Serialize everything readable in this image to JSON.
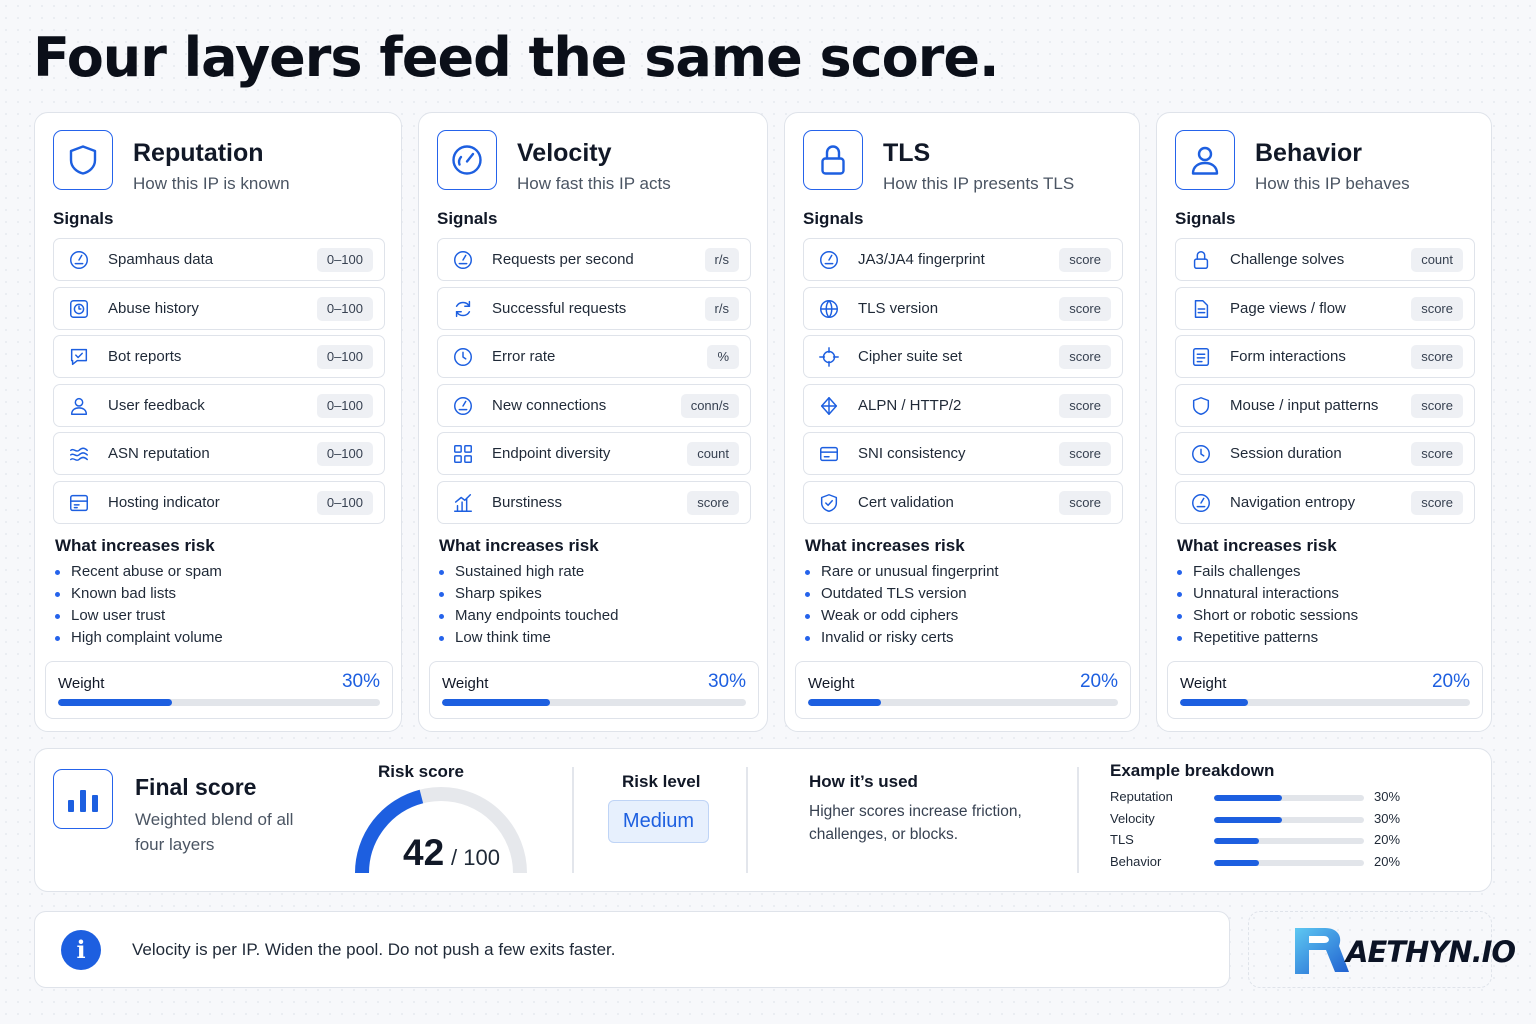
{
  "page_title": "Four layers feed the same score.",
  "signals_heading": "Signals",
  "risk_heading": "What increases risk",
  "weight_label": "Weight",
  "accent_color": "#1d5fe0",
  "cards": [
    {
      "icon": "shield-icon",
      "name": "Reputation",
      "subtitle": "How this IP is known",
      "signals": [
        {
          "label": "Spamhaus data",
          "unit": "0–100",
          "icon": "gauge-icon"
        },
        {
          "label": "Abuse history",
          "unit": "0–100",
          "icon": "clock-box-icon"
        },
        {
          "label": "Bot reports",
          "unit": "0–100",
          "icon": "chat-check-icon"
        },
        {
          "label": "User feedback",
          "unit": "0–100",
          "icon": "user-icon"
        },
        {
          "label": "ASN reputation",
          "unit": "0–100",
          "icon": "waves-icon"
        },
        {
          "label": "Hosting indicator",
          "unit": "0–100",
          "icon": "server-icon"
        }
      ],
      "risks": [
        "Recent abuse or spam",
        "Known bad lists",
        "Low user trust",
        "High complaint volume"
      ],
      "weight": "30%",
      "weight_fraction": 0.3
    },
    {
      "icon": "speedometer-icon",
      "name": "Velocity",
      "subtitle": "How fast this IP acts",
      "signals": [
        {
          "label": "Requests per second",
          "unit": "r/s",
          "icon": "gauge-icon"
        },
        {
          "label": "Successful requests",
          "unit": "r/s",
          "icon": "refresh-icon"
        },
        {
          "label": "Error rate",
          "unit": "%",
          "icon": "clock-icon"
        },
        {
          "label": "New connections",
          "unit": "conn/s",
          "icon": "gauge-icon"
        },
        {
          "label": "Endpoint diversity",
          "unit": "count",
          "icon": "grid-icon"
        },
        {
          "label": "Burstiness",
          "unit": "score",
          "icon": "bar-chart-icon"
        }
      ],
      "risks": [
        "Sustained high rate",
        "Sharp spikes",
        "Many endpoints touched",
        "Low think time"
      ],
      "weight": "30%",
      "weight_fraction": 0.3
    },
    {
      "icon": "lock-icon",
      "name": "TLS",
      "subtitle": "How this IP presents TLS",
      "signals": [
        {
          "label": "JA3/JA4 fingerprint",
          "unit": "score",
          "icon": "gauge-icon"
        },
        {
          "label": "TLS version",
          "unit": "score",
          "icon": "globe-icon"
        },
        {
          "label": "Cipher suite set",
          "unit": "score",
          "icon": "crosshair-icon"
        },
        {
          "label": "ALPN / HTTP/2",
          "unit": "score",
          "icon": "network-icon"
        },
        {
          "label": "SNI consistency",
          "unit": "score",
          "icon": "card-icon"
        },
        {
          "label": "Cert validation",
          "unit": "score",
          "icon": "shield-check-icon"
        }
      ],
      "risks": [
        "Rare or unusual fingerprint",
        "Outdated TLS version",
        "Weak or odd ciphers",
        "Invalid or risky certs"
      ],
      "weight": "20%",
      "weight_fraction": 0.2
    },
    {
      "icon": "user-icon",
      "name": "Behavior",
      "subtitle": "How this IP behaves",
      "signals": [
        {
          "label": "Challenge solves",
          "unit": "count",
          "icon": "lock-icon"
        },
        {
          "label": "Page views / flow",
          "unit": "score",
          "icon": "document-icon"
        },
        {
          "label": "Form interactions",
          "unit": "score",
          "icon": "form-icon"
        },
        {
          "label": "Mouse / input patterns",
          "unit": "score",
          "icon": "shield-icon"
        },
        {
          "label": "Session duration",
          "unit": "score",
          "icon": "clock-icon"
        },
        {
          "label": "Navigation entropy",
          "unit": "score",
          "icon": "gauge-icon"
        }
      ],
      "risks": [
        "Fails challenges",
        "Unnatural interactions",
        "Short or robotic sessions",
        "Repetitive patterns"
      ],
      "weight": "20%",
      "weight_fraction": 0.2
    }
  ],
  "final": {
    "title": "Final score",
    "subtitle": "Weighted blend of all four layers",
    "risk_score_label": "Risk score",
    "risk_score": "42",
    "risk_score_max": "/ 100",
    "risk_score_fraction": 0.42,
    "risk_level_label": "Risk level",
    "risk_level": "Medium",
    "how_used_title": "How it’s used",
    "how_used_text": "Higher scores increase friction, challenges, or blocks.",
    "breakdown_title": "Example breakdown",
    "breakdown": [
      {
        "name": "Reputation",
        "value": "30%",
        "fraction": 0.3
      },
      {
        "name": "Velocity",
        "value": "30%",
        "fraction": 0.3
      },
      {
        "name": "TLS",
        "value": "20%",
        "fraction": 0.2
      },
      {
        "name": "Behavior",
        "value": "20%",
        "fraction": 0.2
      }
    ]
  },
  "note": {
    "icon": "info-icon",
    "text": "Velocity is per IP. Widen the pool. Do not push a few exits faster."
  },
  "logo": {
    "text": "AETHYN.IO"
  }
}
